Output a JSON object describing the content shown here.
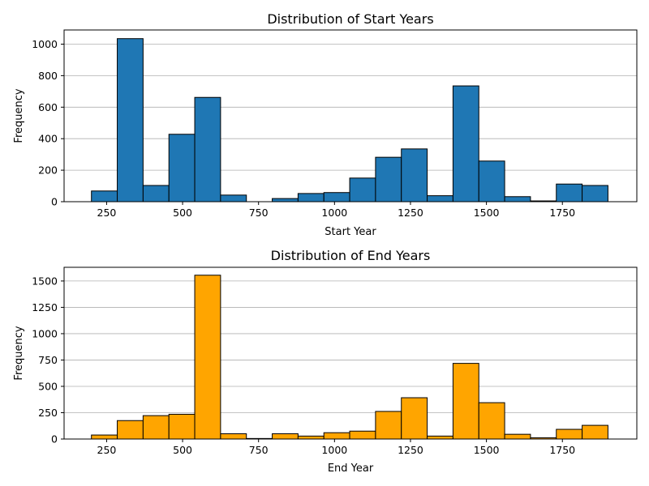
{
  "chart_data": [
    {
      "type": "bar",
      "title": "Distribution of Start Years",
      "xlabel": "Start Year",
      "ylabel": "Frequency",
      "color": "#1f77b4",
      "edgecolor": "#000000",
      "grid": "y",
      "xlim": [
        110,
        1995
      ],
      "ylim": [
        0,
        1090
      ],
      "xticks": [
        250,
        500,
        750,
        1000,
        1250,
        1500,
        1750
      ],
      "yticks": [
        0,
        200,
        400,
        600,
        800,
        1000
      ],
      "bin_edges": [
        200,
        285,
        370,
        455,
        540,
        625,
        710,
        795,
        880,
        965,
        1050,
        1135,
        1220,
        1305,
        1390,
        1475,
        1560,
        1645,
        1730,
        1815,
        1900
      ],
      "values": [
        68,
        1035,
        103,
        428,
        662,
        42,
        0,
        20,
        52,
        58,
        150,
        282,
        335,
        38,
        735,
        258,
        32,
        5,
        112,
        103
      ]
    },
    {
      "type": "bar",
      "title": "Distribution of End Years",
      "xlabel": "End Year",
      "ylabel": "Frequency",
      "color": "#ffa500",
      "edgecolor": "#000000",
      "grid": "y",
      "xlim": [
        110,
        1995
      ],
      "ylim": [
        0,
        1630
      ],
      "xticks": [
        250,
        500,
        750,
        1000,
        1250,
        1500,
        1750
      ],
      "yticks": [
        0,
        250,
        500,
        750,
        1000,
        1250,
        1500
      ],
      "bin_edges": [
        200,
        285,
        370,
        455,
        540,
        625,
        710,
        795,
        880,
        965,
        1050,
        1135,
        1220,
        1305,
        1390,
        1475,
        1560,
        1645,
        1730,
        1815,
        1900
      ],
      "values": [
        38,
        175,
        222,
        235,
        1555,
        50,
        5,
        50,
        28,
        60,
        75,
        262,
        392,
        28,
        718,
        345,
        45,
        12,
        92,
        130
      ]
    }
  ]
}
